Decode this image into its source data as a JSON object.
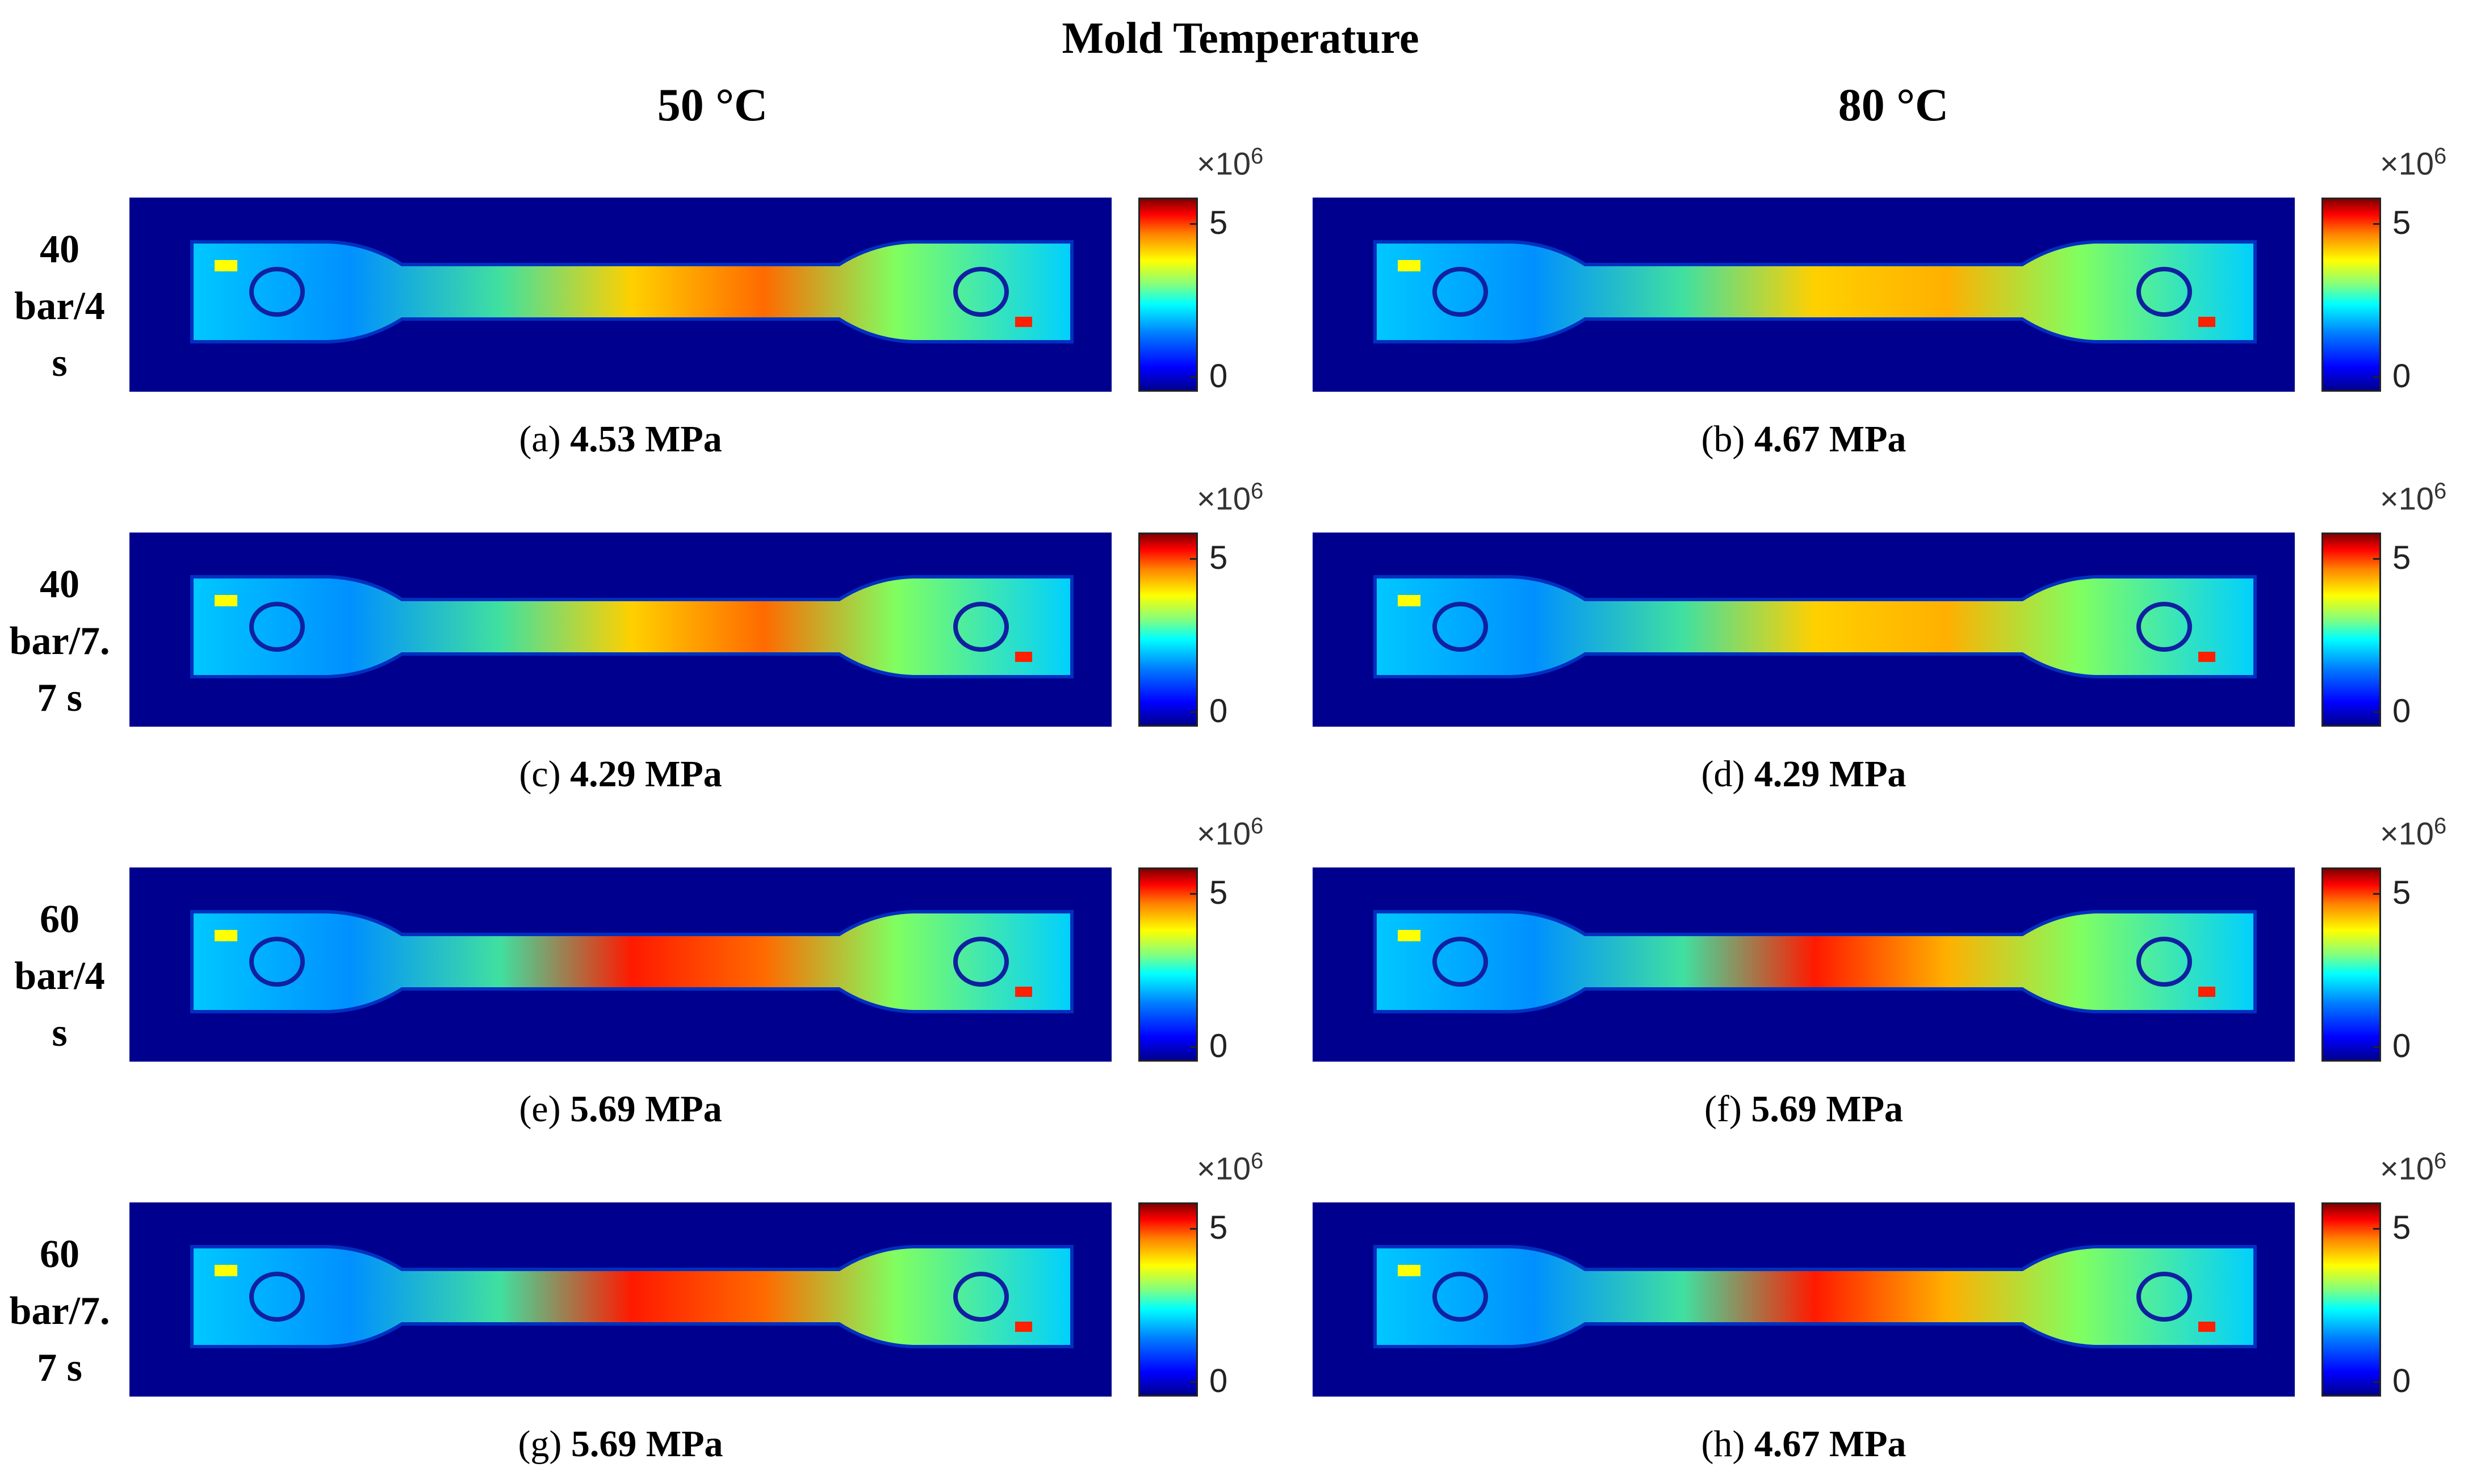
{
  "title": "Mold Temperature",
  "columns": [
    "50 °C",
    "80 °C"
  ],
  "rows": [
    {
      "label": [
        "40",
        "bar/4",
        "s"
      ]
    },
    {
      "label": [
        "40",
        "bar/7.",
        "7 s"
      ]
    },
    {
      "label": [
        "60",
        "bar/4",
        "s"
      ]
    },
    {
      "label": [
        "60",
        "bar/7.",
        "7 s"
      ]
    }
  ],
  "panels": [
    {
      "id": "(a)",
      "value": "4.53 MPa"
    },
    {
      "id": "(b)",
      "value": "4.67 MPa"
    },
    {
      "id": "(c)",
      "value": "4.29 MPa"
    },
    {
      "id": "(d)",
      "value": "4.29 MPa"
    },
    {
      "id": "(e)",
      "value": "5.69 MPa"
    },
    {
      "id": "(f)",
      "value": "5.69 MPa"
    },
    {
      "id": "(g)",
      "value": "5.69 MPa"
    },
    {
      "id": "(h)",
      "value": "4.67 MPa"
    }
  ],
  "colorbar": {
    "multiplier": "×10",
    "exponent": "6",
    "ticks": [
      "5",
      "0"
    ]
  },
  "colors": {
    "background": "#00008f",
    "high": "#ff0000",
    "low": "#0000ff"
  }
}
